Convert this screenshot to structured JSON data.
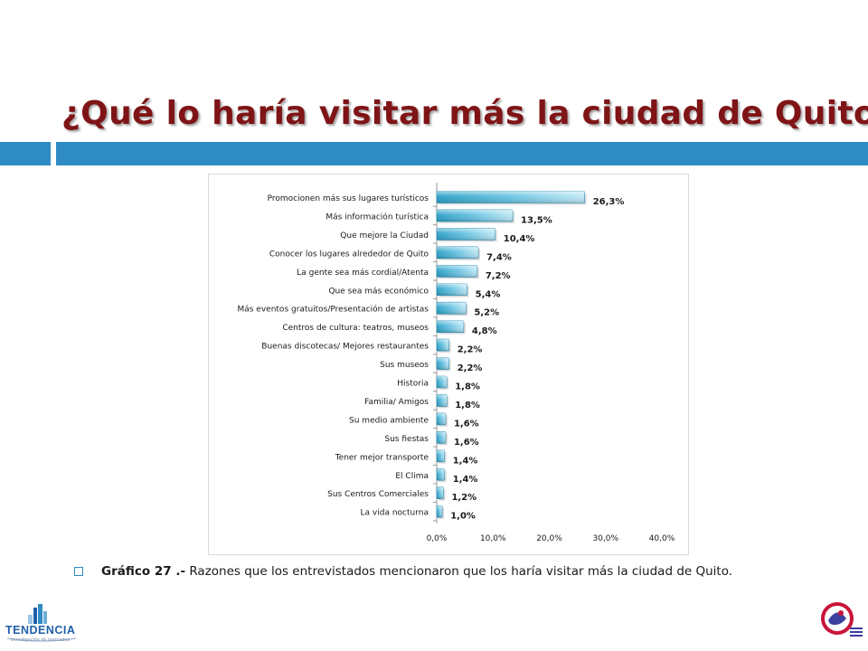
{
  "slide": {
    "title": "¿Qué lo haría visitar más la ciudad de Quito?",
    "caption_bold": "Gráfico 27 .-",
    "caption_text": " Razones que los entrevistados mencionaron que los haría visitar más la ciudad de Quito."
  },
  "logos": {
    "left_text": "TENDENCIA",
    "left_subtext": "investigación de mercados"
  },
  "colors": {
    "title": "#7f1416",
    "accent_bar": "#2e8bc4",
    "bar_light": "#a9dff0",
    "bar_dark": "#2aa0c6"
  },
  "chart_data": {
    "type": "bar",
    "orientation": "horizontal",
    "categories": [
      "Promocionen más sus lugares turísticos",
      "Más información turística",
      "Que mejore la Ciudad",
      "Conocer los lugares alrededor de Quito",
      "La gente sea más cordial/Atenta",
      "Que sea más económico",
      "Más eventos gratuitos/Presentación  de artistas",
      "Centros de cultura: teatros, museos",
      "Buenas discotecas/ Mejores restaurantes",
      "Sus museos",
      "Historia",
      "Familia/ Amigos",
      "Su medio ambiente",
      "Sus fiestas",
      "Tener mejor transporte",
      "El Clima",
      "Sus Centros Comerciales",
      "La vida nocturna"
    ],
    "values": [
      26.3,
      13.5,
      10.4,
      7.4,
      7.2,
      5.4,
      5.2,
      4.8,
      2.2,
      2.2,
      1.8,
      1.8,
      1.6,
      1.6,
      1.4,
      1.4,
      1.2,
      1.0
    ],
    "value_labels": [
      "26,3%",
      "13,5%",
      "10,4%",
      "7,4%",
      "7,2%",
      "5,4%",
      "5,2%",
      "4,8%",
      "2,2%",
      "2,2%",
      "1,8%",
      "1,8%",
      "1,6%",
      "1,6%",
      "1,4%",
      "1,4%",
      "1,2%",
      "1,0%"
    ],
    "xlim": [
      0,
      40
    ],
    "xticks": [
      0,
      10,
      20,
      30,
      40
    ],
    "xtick_labels": [
      "0,0%",
      "10,0%",
      "20,0%",
      "30,0%",
      "40,0%"
    ],
    "title": "",
    "xlabel": "",
    "ylabel": "",
    "grid": false,
    "legend": "none"
  }
}
